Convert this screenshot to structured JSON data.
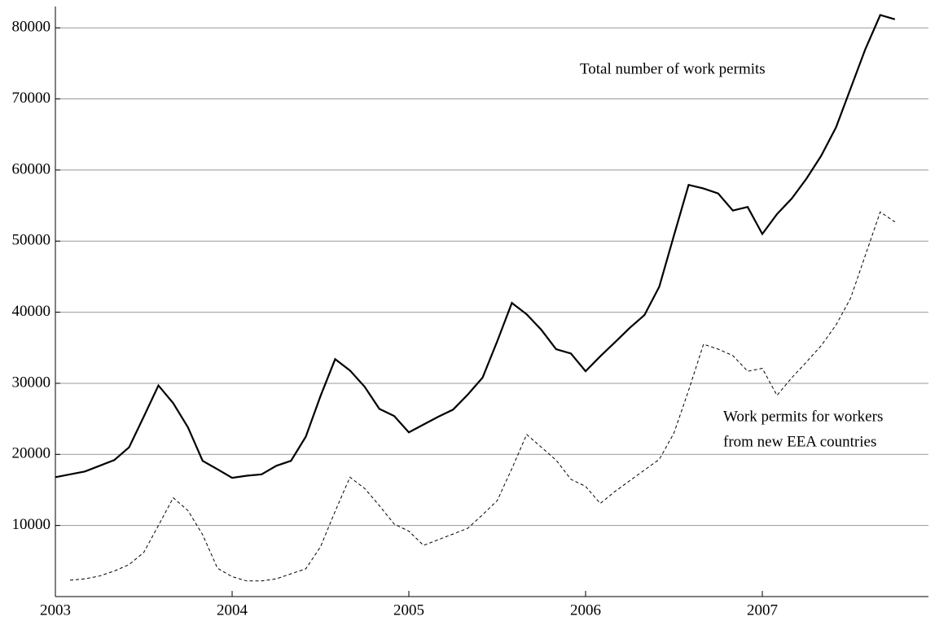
{
  "chart_data": {
    "type": "line",
    "annotations": [
      "Total number of work permits",
      "Work permits for workers",
      "from new EEA countries"
    ],
    "x": [
      2003,
      2003.083,
      2003.167,
      2003.25,
      2003.333,
      2003.417,
      2003.5,
      2003.583,
      2003.667,
      2003.75,
      2003.833,
      2003.917,
      2004,
      2004.083,
      2004.167,
      2004.25,
      2004.333,
      2004.417,
      2004.5,
      2004.583,
      2004.667,
      2004.75,
      2004.833,
      2004.917,
      2005,
      2005.083,
      2005.167,
      2005.25,
      2005.333,
      2005.417,
      2005.5,
      2005.583,
      2005.667,
      2005.75,
      2005.833,
      2005.917,
      2006,
      2006.083,
      2006.167,
      2006.25,
      2006.333,
      2006.417,
      2006.5,
      2006.583,
      2006.667,
      2006.75,
      2006.833,
      2006.917,
      2007,
      2007.083,
      2007.167,
      2007.25,
      2007.333,
      2007.417,
      2007.5,
      2007.583,
      2007.667,
      2007.75
    ],
    "series": [
      {
        "color": "#000000",
        "dash": false,
        "values": [
          16800,
          17200,
          17600,
          18400,
          19200,
          21000,
          25300,
          29700,
          27200,
          23800,
          19100,
          17900,
          16700,
          17000,
          17200,
          18400,
          19100,
          22500,
          28200,
          33400,
          31800,
          29500,
          26400,
          25400,
          23100,
          24200,
          25300,
          26300,
          28400,
          30800,
          35900,
          41300,
          39700,
          37500,
          34800,
          34200,
          31700,
          33800,
          35800,
          37800,
          39600,
          43600,
          50800,
          57900,
          57400,
          56700,
          54300,
          54800,
          51000,
          53800,
          56000,
          58800,
          62000,
          66000,
          71500,
          77000,
          81800,
          81200
        ]
      },
      {
        "color": "#000000",
        "dash": true,
        "values": [
          null,
          2300,
          2500,
          2900,
          3600,
          4500,
          6200,
          10000,
          13900,
          12100,
          8700,
          4000,
          2800,
          2200,
          2200,
          2500,
          3200,
          3900,
          7000,
          12000,
          16800,
          15200,
          12800,
          10200,
          9200,
          7200,
          8000,
          8800,
          9600,
          11500,
          13500,
          18000,
          22800,
          21000,
          19200,
          16500,
          15500,
          13100,
          14800,
          16300,
          17800,
          19300,
          23000,
          29000,
          35500,
          34800,
          33900,
          31700,
          32100,
          28300,
          30800,
          33000,
          35300,
          38200,
          42000,
          48000,
          54100,
          52700
        ]
      }
    ],
    "xlim": [
      2003,
      2007.94
    ],
    "xticks": [
      2003,
      2004,
      2005,
      2006,
      2007
    ],
    "ylim": [
      0,
      83000
    ],
    "yticks": [
      10000,
      20000,
      30000,
      40000,
      50000,
      60000,
      70000,
      80000
    ],
    "grid": true
  }
}
